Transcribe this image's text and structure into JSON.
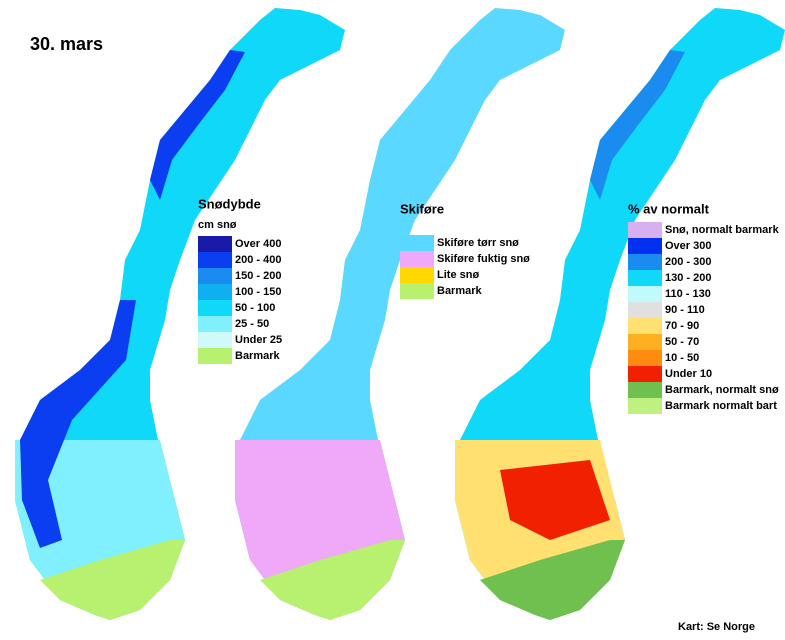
{
  "title": "30. mars",
  "legends": [
    {
      "title": "Snødybde",
      "subtitle": "cm snø",
      "items": [
        {
          "label": "Over 400",
          "color": "#1a1aa8"
        },
        {
          "label": "200 - 400",
          "color": "#0a3ef0"
        },
        {
          "label": "150 - 200",
          "color": "#1a8cf0"
        },
        {
          "label": "100 - 150",
          "color": "#10b0f0"
        },
        {
          "label": "50 - 100",
          "color": "#10d8f8"
        },
        {
          "label": "25 - 50",
          "color": "#80f0ff"
        },
        {
          "label": "Under 25",
          "color": "#d0fafa"
        },
        {
          "label": "Barmark",
          "color": "#b8f070"
        }
      ]
    },
    {
      "title": "Skiføre",
      "items": [
        {
          "label": "Skiføre tørr snø",
          "color": "#5ad8ff"
        },
        {
          "label": "Skiføre fuktig snø",
          "color": "#f0a8f8"
        },
        {
          "label": "Lite snø",
          "color": "#ffd800"
        },
        {
          "label": "Barmark",
          "color": "#b8f070"
        }
      ]
    },
    {
      "title": "% av normalt",
      "items": [
        {
          "label": "Snø, normalt barmark",
          "color": "#d8b0f0"
        },
        {
          "label": "Over 300",
          "color": "#0030f0"
        },
        {
          "label": "200 - 300",
          "color": "#1a8cf0"
        },
        {
          "label": "130 - 200",
          "color": "#10d8f8"
        },
        {
          "label": "110 - 130",
          "color": "#c0fafa"
        },
        {
          "label": "90 - 110",
          "color": "#e0e0e0"
        },
        {
          "label": "70 - 90",
          "color": "#ffe070"
        },
        {
          "label": "50 - 70",
          "color": "#ffb020"
        },
        {
          "label": "10 - 50",
          "color": "#ff8c10"
        },
        {
          "label": "Under 10",
          "color": "#f02000"
        },
        {
          "label": "Barmark, normalt snø",
          "color": "#70c050"
        },
        {
          "label": "Barmark normalt bart",
          "color": "#c0f080"
        }
      ]
    }
  ],
  "credit": "Kart: Se Norge"
}
